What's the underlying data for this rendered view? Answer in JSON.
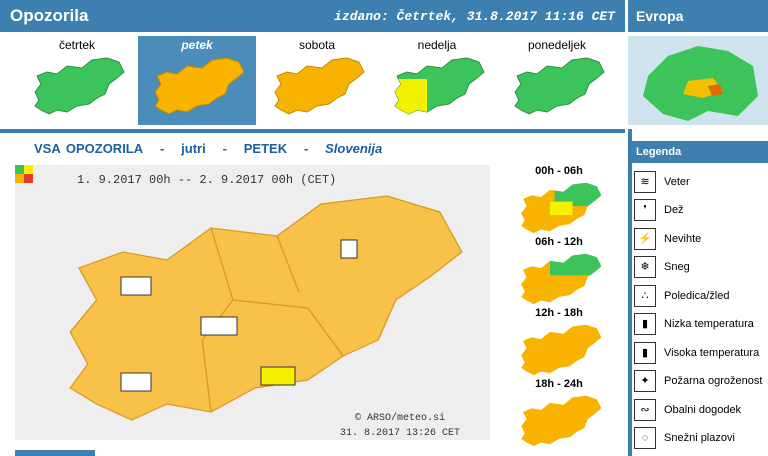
{
  "header": {
    "title": "Opozorila",
    "issued": "izdano: Četrtek, 31.8.2017 11:16 CET"
  },
  "europe": {
    "title": "Evropa"
  },
  "days": [
    "četrtek",
    "petek",
    "sobota",
    "nedelja",
    "ponedeljek"
  ],
  "main": {
    "title_parts": [
      "VSA OPOZORILA",
      "-",
      "jutri",
      "-",
      "PETEK",
      "-",
      "Slovenija"
    ],
    "period": "1. 9.2017 00h -- 2. 9.2017 00h (CET)",
    "credit": "© ARSO/meteo.si",
    "credit_date": "31. 8.2017 13:26 CET"
  },
  "slots": [
    "00h - 06h",
    "06h - 12h",
    "12h - 18h",
    "18h - 24h"
  ],
  "legend": {
    "title": "Legenda",
    "items": [
      "Veter",
      "Dež",
      "Nevihte",
      "Sneg",
      "Poledica/žled",
      "Nizka temperatura",
      "Visoka temperatura",
      "Požarna ogroženost",
      "Obalni dogodek",
      "Snežni plazovi"
    ]
  }
}
